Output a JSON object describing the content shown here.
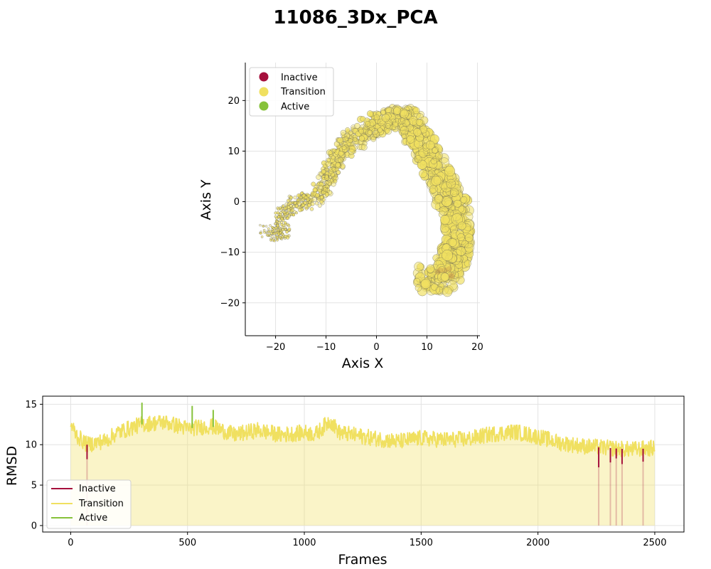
{
  "figure": {
    "title": "11086_3Dx_PCA",
    "colors": {
      "inactive": "#a50f3c",
      "transition": "#f0e060",
      "active": "#86c23a"
    }
  },
  "chart_data": [
    {
      "type": "scatter",
      "title": "",
      "xlabel": "Axis X",
      "ylabel": "Axis Y",
      "xlim": [
        -26,
        20.5
      ],
      "ylim": [
        -26.5,
        27.5
      ],
      "xticks": [
        "−20",
        "−10",
        "0",
        "10",
        "20"
      ],
      "xtick_values": [
        -20,
        -10,
        0,
        10,
        20
      ],
      "yticks": [
        "−20",
        "−10",
        "0",
        "10",
        "20"
      ],
      "ytick_values": [
        -20,
        -10,
        0,
        10,
        20
      ],
      "grid": true,
      "legend_position": "top-left",
      "legend": [
        {
          "label": "Inactive",
          "color": "#a50f3c"
        },
        {
          "label": "Transition",
          "color": "#f0e060"
        },
        {
          "label": "Active",
          "color": "#86c23a"
        }
      ],
      "trajectory_path": [
        [
          -22.5,
          -5.5
        ],
        [
          -20.5,
          -6.5
        ],
        [
          -18.5,
          -6
        ],
        [
          -19,
          -2.5
        ],
        [
          -17.5,
          -1.5
        ],
        [
          -16,
          0.5
        ],
        [
          -14,
          -0.5
        ],
        [
          -12.5,
          0.5
        ],
        [
          -11,
          2
        ],
        [
          -10,
          3.5
        ],
        [
          -9.5,
          6
        ],
        [
          -8.5,
          7.5
        ],
        [
          -7.5,
          9.5
        ],
        [
          -6.5,
          10.5
        ],
        [
          -5,
          12
        ],
        [
          -3.5,
          13
        ],
        [
          -2,
          14
        ],
        [
          -0.5,
          15
        ],
        [
          1,
          16
        ],
        [
          2.5,
          16.5
        ],
        [
          4,
          16.5
        ],
        [
          5.5,
          17
        ],
        [
          6.5,
          16
        ],
        [
          7.5,
          14
        ],
        [
          8.5,
          12
        ],
        [
          9.5,
          10
        ],
        [
          10.5,
          8
        ],
        [
          11.5,
          6
        ],
        [
          12.5,
          4
        ],
        [
          13.5,
          2
        ],
        [
          14.5,
          0.5
        ],
        [
          15.5,
          -1.5
        ],
        [
          16,
          -3.5
        ],
        [
          16,
          -6
        ],
        [
          16,
          -8.5
        ],
        [
          15.5,
          -11
        ],
        [
          14.5,
          -13
        ],
        [
          13.5,
          -14.5
        ],
        [
          12.5,
          -15.5
        ],
        [
          11,
          -16
        ],
        [
          10,
          -14.5
        ]
      ],
      "point_count": 2500,
      "series": [
        {
          "name": "Inactive",
          "approx_points": 8
        },
        {
          "name": "Transition",
          "approx_points": 2480
        },
        {
          "name": "Active",
          "approx_points": 12
        }
      ]
    },
    {
      "type": "line",
      "title": "",
      "xlabel": "Frames",
      "ylabel": "RMSD",
      "xlim": [
        -120,
        2625
      ],
      "ylim": [
        -0.8,
        16
      ],
      "xticks": [
        "0",
        "500",
        "1000",
        "1500",
        "2000",
        "2500"
      ],
      "xtick_values": [
        0,
        500,
        1000,
        1500,
        2000,
        2500
      ],
      "yticks": [
        "0",
        "5",
        "10",
        "15"
      ],
      "ytick_values": [
        0,
        5,
        10,
        15
      ],
      "grid": true,
      "legend_position": "bottom-left",
      "legend": [
        {
          "label": "Inactive",
          "color": "#a50f3c"
        },
        {
          "label": "Transition",
          "color": "#f0e060"
        },
        {
          "label": "Active",
          "color": "#86c23a"
        }
      ],
      "rmsd_profile": [
        {
          "frame": 0,
          "rmsd": 12.5
        },
        {
          "frame": 30,
          "rmsd": 11
        },
        {
          "frame": 70,
          "rmsd": 10
        },
        {
          "frame": 150,
          "rmsd": 10.5
        },
        {
          "frame": 200,
          "rmsd": 11.5
        },
        {
          "frame": 300,
          "rmsd": 12.5
        },
        {
          "frame": 400,
          "rmsd": 12.8
        },
        {
          "frame": 500,
          "rmsd": 12
        },
        {
          "frame": 600,
          "rmsd": 12.3
        },
        {
          "frame": 700,
          "rmsd": 11.2
        },
        {
          "frame": 800,
          "rmsd": 11.8
        },
        {
          "frame": 900,
          "rmsd": 11.2
        },
        {
          "frame": 1000,
          "rmsd": 11.5
        },
        {
          "frame": 1050,
          "rmsd": 11.3
        },
        {
          "frame": 1110,
          "rmsd": 13
        },
        {
          "frame": 1150,
          "rmsd": 11.5
        },
        {
          "frame": 1250,
          "rmsd": 11
        },
        {
          "frame": 1300,
          "rmsd": 10.8
        },
        {
          "frame": 1400,
          "rmsd": 10.4
        },
        {
          "frame": 1500,
          "rmsd": 10.8
        },
        {
          "frame": 1600,
          "rmsd": 10.6
        },
        {
          "frame": 1700,
          "rmsd": 10.7
        },
        {
          "frame": 1800,
          "rmsd": 11.3
        },
        {
          "frame": 1900,
          "rmsd": 11.6
        },
        {
          "frame": 2000,
          "rmsd": 11
        },
        {
          "frame": 2100,
          "rmsd": 10.2
        },
        {
          "frame": 2200,
          "rmsd": 9.8
        },
        {
          "frame": 2300,
          "rmsd": 9.6
        },
        {
          "frame": 2400,
          "rmsd": 9.4
        },
        {
          "frame": 2500,
          "rmsd": 9.6
        }
      ],
      "spikes": [
        {
          "frame": 305,
          "rmsd": 15.2,
          "state": "Active"
        },
        {
          "frame": 520,
          "rmsd": 14.8,
          "state": "Active"
        },
        {
          "frame": 610,
          "rmsd": 14.3,
          "state": "Active"
        },
        {
          "frame": 70,
          "rmsd": 8.2,
          "state": "Inactive"
        },
        {
          "frame": 2260,
          "rmsd": 7.2,
          "state": "Inactive"
        },
        {
          "frame": 2310,
          "rmsd": 7.8,
          "state": "Inactive"
        },
        {
          "frame": 2335,
          "rmsd": 8.3,
          "state": "Inactive"
        },
        {
          "frame": 2360,
          "rmsd": 7.6,
          "state": "Inactive"
        },
        {
          "frame": 2450,
          "rmsd": 7.9,
          "state": "Inactive"
        }
      ]
    }
  ]
}
